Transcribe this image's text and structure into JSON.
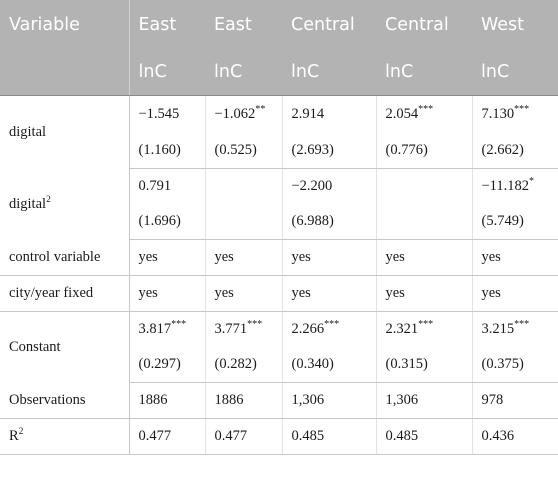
{
  "table": {
    "header_row1": {
      "variable": "Variable",
      "groups": [
        "East",
        "East",
        "Central",
        "Central",
        "West"
      ]
    },
    "header_row2": [
      "lnC",
      "lnC",
      "lnC",
      "lnC",
      "lnC"
    ],
    "rows": [
      {
        "label": "digital",
        "label_sup": "",
        "coef": [
          {
            "v": "−1.545",
            "s": ""
          },
          {
            "v": "−1.062",
            "s": "**"
          },
          {
            "v": "2.914",
            "s": ""
          },
          {
            "v": "2.054",
            "s": "***"
          },
          {
            "v": "7.130",
            "s": "***"
          }
        ],
        "se": [
          "(1.160)",
          "(0.525)",
          "(2.693)",
          "(0.776)",
          "(2.662)"
        ]
      },
      {
        "label": "digital",
        "label_sup": "2",
        "coef": [
          {
            "v": "0.791",
            "s": ""
          },
          {
            "v": "",
            "s": ""
          },
          {
            "v": "−2.200",
            "s": ""
          },
          {
            "v": "",
            "s": ""
          },
          {
            "v": "−11.182",
            "s": "*"
          }
        ],
        "se": [
          "(1.696)",
          "",
          "(6.988)",
          "",
          "(5.749)"
        ]
      },
      {
        "label": "control variable",
        "values": [
          "yes",
          "yes",
          "yes",
          "yes",
          "yes"
        ]
      },
      {
        "label": "city/year fixed",
        "values": [
          "yes",
          "yes",
          "yes",
          "yes",
          "yes"
        ]
      },
      {
        "label": "Constant",
        "label_sup": "",
        "coef": [
          {
            "v": "3.817",
            "s": "***"
          },
          {
            "v": "3.771",
            "s": "***"
          },
          {
            "v": "2.266",
            "s": "***"
          },
          {
            "v": "2.321",
            "s": "***"
          },
          {
            "v": "3.215",
            "s": "***"
          }
        ],
        "se": [
          "(0.297)",
          "(0.282)",
          "(0.340)",
          "(0.315)",
          "(0.375)"
        ]
      },
      {
        "label": "Observations",
        "values": [
          "1886",
          "1886",
          "1,306",
          "1,306",
          "978"
        ]
      },
      {
        "label": "R",
        "label_sup": "2",
        "values": [
          "0.477",
          "0.477",
          "0.485",
          "0.485",
          "0.436"
        ]
      }
    ]
  }
}
